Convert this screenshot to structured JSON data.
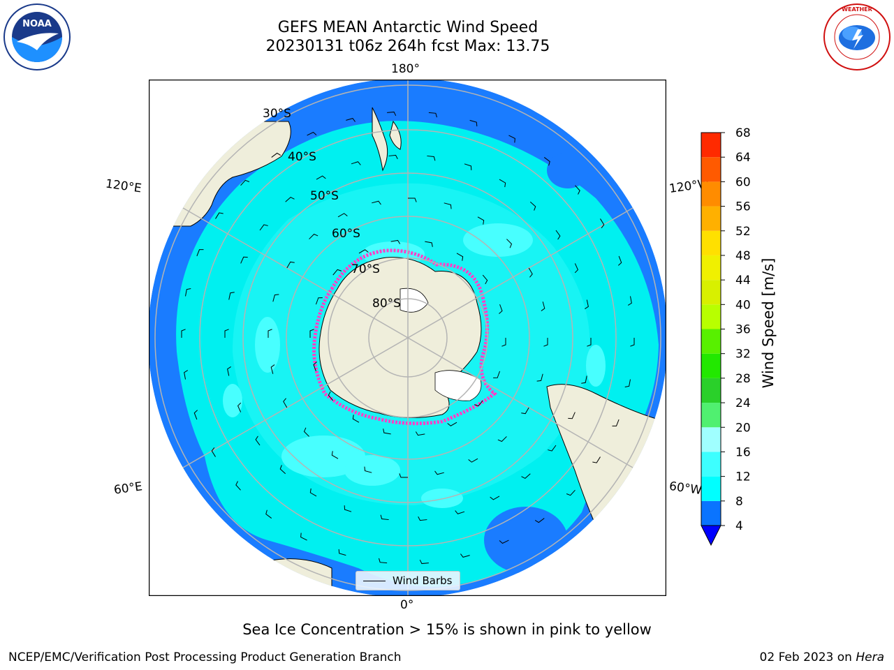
{
  "title": {
    "line1": "GEFS MEAN Antarctic Wind Speed",
    "line2": "20230131 t06z 264h fcst   Max: 13.75"
  },
  "lon_labels": {
    "top": "180°",
    "bottom": "0°",
    "upper_left": "120°E",
    "upper_right": "120°W",
    "lower_left": "60°E",
    "lower_right": "60°W"
  },
  "lat_labels": [
    "30°S",
    "40°S",
    "50°S",
    "60°S",
    "70°S",
    "80°S"
  ],
  "legend": {
    "label": "Wind Barbs"
  },
  "colorbar": {
    "label": "Wind Speed [m/s]",
    "ticks": [
      "4",
      "8",
      "12",
      "16",
      "20",
      "24",
      "28",
      "32",
      "36",
      "40",
      "44",
      "48",
      "52",
      "56",
      "60",
      "64",
      "68"
    ],
    "colors": [
      "#0a74ff",
      "#00ffff",
      "#3dffff",
      "#a0ffff",
      "#50f070",
      "#2ad02a",
      "#22e800",
      "#58f000",
      "#b8ff00",
      "#d8f000",
      "#f0f000",
      "#ffe000",
      "#ffb000",
      "#ff8c00",
      "#ff5a00",
      "#ff2a00"
    ],
    "extend_color": "#0000ff"
  },
  "caption": "Sea Ice Concentration > 15% is shown in pink to yellow",
  "footer": {
    "left": "NCEP/EMC/Verification Post Processing Product Generation Branch",
    "right_date": "02 Feb 2023 on",
    "right_host": "Hera"
  },
  "logos": {
    "left": "NOAA",
    "right": "NATIONAL WEATHER SERVICE"
  },
  "map_colors": {
    "land": "#efeedb",
    "ocean_deep": "#1a7cff",
    "ocean_mid": "#00f0f0",
    "ocean_light": "#48ffff",
    "grid": "#b4b4b4",
    "sea_ice": "#ff40c8"
  }
}
